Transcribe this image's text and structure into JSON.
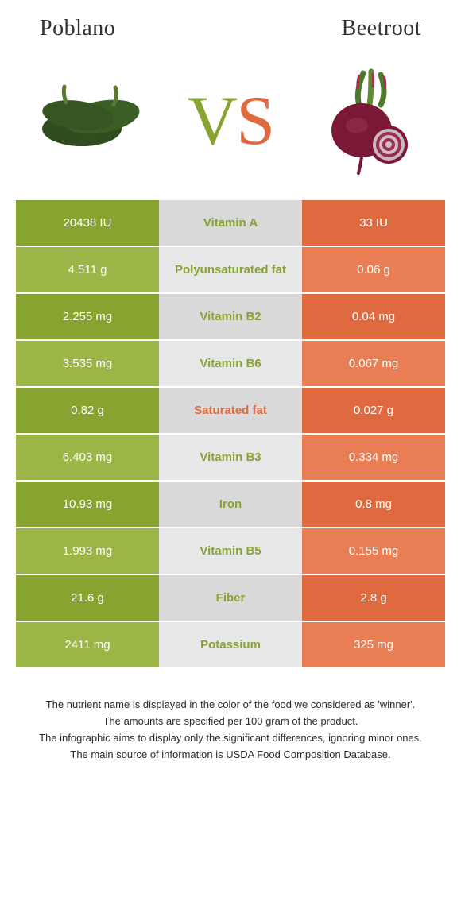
{
  "colors": {
    "left_dark": "#87a330",
    "left_light": "#9bb546",
    "mid_dark": "#d9d9d9",
    "mid_light": "#e8e8e8",
    "right_dark": "#e06a3f",
    "right_light": "#e97e54",
    "vs_v": "#87a330",
    "vs_s": "#e06a3f",
    "mid_text_green": "#87a330",
    "mid_text_orange": "#e06a3f"
  },
  "header": {
    "left_title": "Poblano",
    "right_title": "Beetroot"
  },
  "vs": {
    "v": "V",
    "s": "S"
  },
  "rows": [
    {
      "left": "20438 IU",
      "mid": "Vitamin A",
      "right": "33 IU",
      "winner": "left"
    },
    {
      "left": "4.511 g",
      "mid": "Polyunsaturated fat",
      "right": "0.06 g",
      "winner": "left"
    },
    {
      "left": "2.255 mg",
      "mid": "Vitamin B2",
      "right": "0.04 mg",
      "winner": "left"
    },
    {
      "left": "3.535 mg",
      "mid": "Vitamin B6",
      "right": "0.067 mg",
      "winner": "left"
    },
    {
      "left": "0.82 g",
      "mid": "Saturated fat",
      "right": "0.027 g",
      "winner": "right"
    },
    {
      "left": "6.403 mg",
      "mid": "Vitamin B3",
      "right": "0.334 mg",
      "winner": "left"
    },
    {
      "left": "10.93 mg",
      "mid": "Iron",
      "right": "0.8 mg",
      "winner": "left"
    },
    {
      "left": "1.993 mg",
      "mid": "Vitamin B5",
      "right": "0.155 mg",
      "winner": "left"
    },
    {
      "left": "21.6 g",
      "mid": "Fiber",
      "right": "2.8 g",
      "winner": "left"
    },
    {
      "left": "2411 mg",
      "mid": "Potassium",
      "right": "325 mg",
      "winner": "left"
    }
  ],
  "footnotes": [
    "The nutrient name is displayed in the color of the food we considered as 'winner'.",
    "The amounts are specified per 100 gram of the product.",
    "The infographic aims to display only the significant differences, ignoring minor ones.",
    "The main source of information is USDA Food Composition Database."
  ]
}
